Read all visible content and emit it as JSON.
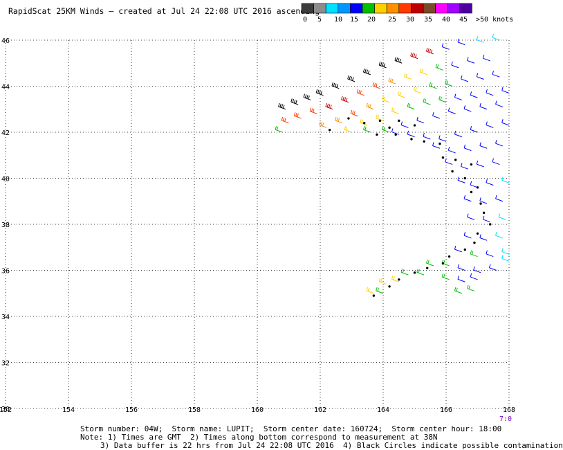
{
  "title": "RapidScat 25KM Winds – created at Jul 24 22:08 UTC 2016 ascending",
  "colorbar": {
    "segments": [
      "#3c3c3c",
      "#8c8c8c",
      "#00e0ff",
      "#0096ff",
      "#0000ff",
      "#00c000",
      "#ffd000",
      "#ff9000",
      "#ff3c00",
      "#c00000",
      "#7a4a2a",
      "#ff00ff",
      "#a000ff",
      "#5000a0"
    ],
    "labels": [
      "0",
      "5",
      "10",
      "15",
      "20",
      "25",
      "30",
      "35",
      "40",
      "45",
      ">50 knots"
    ]
  },
  "chart_data": {
    "type": "scatter",
    "title": "RapidScat 25KM Winds – created at Jul 24 22:08 UTC 2016 ascending",
    "xlabel": "",
    "ylabel": "",
    "xlim": [
      152,
      168
    ],
    "ylim": [
      30,
      46
    ],
    "x_ticks": [
      "152",
      "154",
      "156",
      "158",
      "160",
      "162",
      "164",
      "166",
      "168"
    ],
    "y_ticks": [
      "30",
      "32",
      "34",
      "36",
      "38",
      "40",
      "42",
      "44",
      "46"
    ],
    "grid": true,
    "swath_description": "wind barbs colored by speed (knots)",
    "wind_barbs": [
      {
        "lon": 160.9,
        "lat": 43.0,
        "speed": 38
      },
      {
        "lon": 161.3,
        "lat": 43.2,
        "speed": 40
      },
      {
        "lon": 161.7,
        "lat": 43.4,
        "speed": 40
      },
      {
        "lon": 162.1,
        "lat": 43.6,
        "speed": 42
      },
      {
        "lon": 162.6,
        "lat": 43.9,
        "speed": 42
      },
      {
        "lon": 163.1,
        "lat": 44.2,
        "speed": 40
      },
      {
        "lon": 163.6,
        "lat": 44.5,
        "speed": 40
      },
      {
        "lon": 164.1,
        "lat": 44.8,
        "speed": 38
      },
      {
        "lon": 164.6,
        "lat": 45.0,
        "speed": 38
      },
      {
        "lon": 165.1,
        "lat": 45.2,
        "speed": 36
      },
      {
        "lon": 165.6,
        "lat": 45.4,
        "speed": 36
      },
      {
        "lon": 166.1,
        "lat": 45.6,
        "speed": 12
      },
      {
        "lon": 166.6,
        "lat": 45.8,
        "speed": 10
      },
      {
        "lon": 167.2,
        "lat": 45.9,
        "speed": 8
      },
      {
        "lon": 167.7,
        "lat": 46.0,
        "speed": 8
      },
      {
        "lon": 161.0,
        "lat": 42.4,
        "speed": 30
      },
      {
        "lon": 161.4,
        "lat": 42.6,
        "speed": 30
      },
      {
        "lon": 161.9,
        "lat": 42.8,
        "speed": 32
      },
      {
        "lon": 162.4,
        "lat": 43.0,
        "speed": 36
      },
      {
        "lon": 162.9,
        "lat": 43.3,
        "speed": 36
      },
      {
        "lon": 163.4,
        "lat": 43.6,
        "speed": 32
      },
      {
        "lon": 163.9,
        "lat": 43.9,
        "speed": 30
      },
      {
        "lon": 164.4,
        "lat": 44.1,
        "speed": 26
      },
      {
        "lon": 164.9,
        "lat": 44.3,
        "speed": 24
      },
      {
        "lon": 165.4,
        "lat": 44.5,
        "speed": 24
      },
      {
        "lon": 165.9,
        "lat": 44.7,
        "speed": 18
      },
      {
        "lon": 166.4,
        "lat": 44.8,
        "speed": 14
      },
      {
        "lon": 166.9,
        "lat": 45.0,
        "speed": 14
      },
      {
        "lon": 167.4,
        "lat": 45.1,
        "speed": 12
      },
      {
        "lon": 162.2,
        "lat": 42.2,
        "speed": 26
      },
      {
        "lon": 162.7,
        "lat": 42.4,
        "speed": 28
      },
      {
        "lon": 163.2,
        "lat": 42.7,
        "speed": 30
      },
      {
        "lon": 163.7,
        "lat": 43.0,
        "speed": 28
      },
      {
        "lon": 164.2,
        "lat": 43.3,
        "speed": 24
      },
      {
        "lon": 164.7,
        "lat": 43.5,
        "speed": 22
      },
      {
        "lon": 165.2,
        "lat": 43.7,
        "speed": 20
      },
      {
        "lon": 165.7,
        "lat": 43.9,
        "speed": 18
      },
      {
        "lon": 166.2,
        "lat": 44.0,
        "speed": 16
      },
      {
        "lon": 166.7,
        "lat": 44.2,
        "speed": 14
      },
      {
        "lon": 167.2,
        "lat": 44.3,
        "speed": 12
      },
      {
        "lon": 167.7,
        "lat": 44.4,
        "speed": 10
      },
      {
        "lon": 160.8,
        "lat": 42.0,
        "speed": 18
      },
      {
        "lon": 163.0,
        "lat": 42.0,
        "speed": 24
      },
      {
        "lon": 163.5,
        "lat": 42.3,
        "speed": 22
      },
      {
        "lon": 164.0,
        "lat": 42.5,
        "speed": 22
      },
      {
        "lon": 164.5,
        "lat": 42.8,
        "speed": 20
      },
      {
        "lon": 165.0,
        "lat": 43.0,
        "speed": 18
      },
      {
        "lon": 165.5,
        "lat": 43.2,
        "speed": 18
      },
      {
        "lon": 166.0,
        "lat": 43.3,
        "speed": 16
      },
      {
        "lon": 166.5,
        "lat": 43.4,
        "speed": 14
      },
      {
        "lon": 167.0,
        "lat": 43.5,
        "speed": 12
      },
      {
        "lon": 167.5,
        "lat": 43.6,
        "speed": 12
      },
      {
        "lon": 168.0,
        "lat": 43.7,
        "speed": 12
      },
      {
        "lon": 163.6,
        "lat": 42.0,
        "speed": 16
      },
      {
        "lon": 164.2,
        "lat": 42.0,
        "speed": 16
      },
      {
        "lon": 164.8,
        "lat": 42.2,
        "speed": 14
      },
      {
        "lon": 165.3,
        "lat": 42.4,
        "speed": 14
      },
      {
        "lon": 165.8,
        "lat": 42.6,
        "speed": 12
      },
      {
        "lon": 166.3,
        "lat": 42.8,
        "speed": 12
      },
      {
        "lon": 166.8,
        "lat": 42.9,
        "speed": 12
      },
      {
        "lon": 167.3,
        "lat": 43.0,
        "speed": 12
      },
      {
        "lon": 167.8,
        "lat": 43.1,
        "speed": 10
      },
      {
        "lon": 164.5,
        "lat": 41.9,
        "speed": 10
      },
      {
        "lon": 165.0,
        "lat": 41.8,
        "speed": 10
      },
      {
        "lon": 165.5,
        "lat": 41.7,
        "speed": 12
      },
      {
        "lon": 166.0,
        "lat": 41.6,
        "speed": 12
      },
      {
        "lon": 166.5,
        "lat": 41.8,
        "speed": 14
      },
      {
        "lon": 167.0,
        "lat": 42.0,
        "speed": 14
      },
      {
        "lon": 167.5,
        "lat": 42.2,
        "speed": 12
      },
      {
        "lon": 168.0,
        "lat": 42.3,
        "speed": 10
      },
      {
        "lon": 165.8,
        "lat": 41.3,
        "speed": 10
      },
      {
        "lon": 166.3,
        "lat": 41.1,
        "speed": 10
      },
      {
        "lon": 166.8,
        "lat": 41.2,
        "speed": 12
      },
      {
        "lon": 167.3,
        "lat": 41.3,
        "speed": 14
      },
      {
        "lon": 167.8,
        "lat": 41.4,
        "speed": 12
      },
      {
        "lon": 166.2,
        "lat": 40.6,
        "speed": 10
      },
      {
        "lon": 166.7,
        "lat": 40.4,
        "speed": 12
      },
      {
        "lon": 167.2,
        "lat": 40.5,
        "speed": 14
      },
      {
        "lon": 167.7,
        "lat": 40.6,
        "speed": 14
      },
      {
        "lon": 166.6,
        "lat": 39.8,
        "speed": 10
      },
      {
        "lon": 167.0,
        "lat": 39.6,
        "speed": 12
      },
      {
        "lon": 167.5,
        "lat": 39.7,
        "speed": 12
      },
      {
        "lon": 168.0,
        "lat": 39.8,
        "speed": 8
      },
      {
        "lon": 166.8,
        "lat": 39.0,
        "speed": 10
      },
      {
        "lon": 167.3,
        "lat": 38.9,
        "speed": 12
      },
      {
        "lon": 167.8,
        "lat": 39.0,
        "speed": 10
      },
      {
        "lon": 166.9,
        "lat": 38.2,
        "speed": 10
      },
      {
        "lon": 167.4,
        "lat": 38.1,
        "speed": 12
      },
      {
        "lon": 167.9,
        "lat": 38.2,
        "speed": 8
      },
      {
        "lon": 166.8,
        "lat": 37.4,
        "speed": 12
      },
      {
        "lon": 167.3,
        "lat": 37.3,
        "speed": 14
      },
      {
        "lon": 167.8,
        "lat": 37.4,
        "speed": 8
      },
      {
        "lon": 166.5,
        "lat": 36.8,
        "speed": 14
      },
      {
        "lon": 167.0,
        "lat": 36.6,
        "speed": 16
      },
      {
        "lon": 167.5,
        "lat": 36.6,
        "speed": 12
      },
      {
        "lon": 168.0,
        "lat": 36.7,
        "speed": 8
      },
      {
        "lon": 165.6,
        "lat": 36.2,
        "speed": 16
      },
      {
        "lon": 166.1,
        "lat": 36.2,
        "speed": 16
      },
      {
        "lon": 166.6,
        "lat": 36.0,
        "speed": 14
      },
      {
        "lon": 167.1,
        "lat": 35.9,
        "speed": 12
      },
      {
        "lon": 167.6,
        "lat": 36.0,
        "speed": 10
      },
      {
        "lon": 168.0,
        "lat": 36.4,
        "speed": 8
      },
      {
        "lon": 164.8,
        "lat": 35.8,
        "speed": 18
      },
      {
        "lon": 165.3,
        "lat": 35.8,
        "speed": 18
      },
      {
        "lon": 166.1,
        "lat": 35.6,
        "speed": 16
      },
      {
        "lon": 166.6,
        "lat": 35.5,
        "speed": 14
      },
      {
        "lon": 167.0,
        "lat": 35.6,
        "speed": 12
      },
      {
        "lon": 164.1,
        "lat": 35.4,
        "speed": 20
      },
      {
        "lon": 164.5,
        "lat": 35.5,
        "speed": 20
      },
      {
        "lon": 166.5,
        "lat": 35.0,
        "speed": 16
      },
      {
        "lon": 166.9,
        "lat": 35.1,
        "speed": 16
      },
      {
        "lon": 163.7,
        "lat": 35.0,
        "speed": 22
      },
      {
        "lon": 164.0,
        "lat": 35.0,
        "speed": 18
      }
    ],
    "contamination_circles": [
      {
        "lon": 162.3,
        "lat": 42.1
      },
      {
        "lon": 162.9,
        "lat": 42.6
      },
      {
        "lon": 163.4,
        "lat": 42.4
      },
      {
        "lon": 163.9,
        "lat": 42.5
      },
      {
        "lon": 164.2,
        "lat": 42.2
      },
      {
        "lon": 164.5,
        "lat": 42.5
      },
      {
        "lon": 165.0,
        "lat": 42.3
      },
      {
        "lon": 163.8,
        "lat": 41.9
      },
      {
        "lon": 164.4,
        "lat": 41.9
      },
      {
        "lon": 164.9,
        "lat": 41.7
      },
      {
        "lon": 165.3,
        "lat": 41.6
      },
      {
        "lon": 165.8,
        "lat": 41.5
      },
      {
        "lon": 165.9,
        "lat": 40.9
      },
      {
        "lon": 166.3,
        "lat": 40.8
      },
      {
        "lon": 166.8,
        "lat": 40.6
      },
      {
        "lon": 166.2,
        "lat": 40.3
      },
      {
        "lon": 166.6,
        "lat": 40.0
      },
      {
        "lon": 167.0,
        "lat": 39.6
      },
      {
        "lon": 166.8,
        "lat": 39.4
      },
      {
        "lon": 167.1,
        "lat": 38.9
      },
      {
        "lon": 167.2,
        "lat": 38.5
      },
      {
        "lon": 167.4,
        "lat": 38.0
      },
      {
        "lon": 167.0,
        "lat": 37.6
      },
      {
        "lon": 166.9,
        "lat": 37.2
      },
      {
        "lon": 166.6,
        "lat": 36.9
      },
      {
        "lon": 166.1,
        "lat": 36.6
      },
      {
        "lon": 165.9,
        "lat": 36.3
      },
      {
        "lon": 165.4,
        "lat": 36.1
      },
      {
        "lon": 165.0,
        "lat": 35.9
      },
      {
        "lon": 164.5,
        "lat": 35.6
      },
      {
        "lon": 164.2,
        "lat": 35.3
      },
      {
        "lon": 163.7,
        "lat": 34.9
      }
    ]
  },
  "footer": {
    "line1": "Storm number: 04W;  Storm name: LUPIT;  Storm center date: 160724;  Storm center hour: 18:00",
    "line2": "Note: 1) Times are GMT  2) Times along bottom correspond to measurement at 38N",
    "line3": "3) Data buffer is 22 hrs from Jul 24 22:08 UTC 2016  4) Black Circles indicate possible contamination"
  },
  "time_label": "7:0"
}
